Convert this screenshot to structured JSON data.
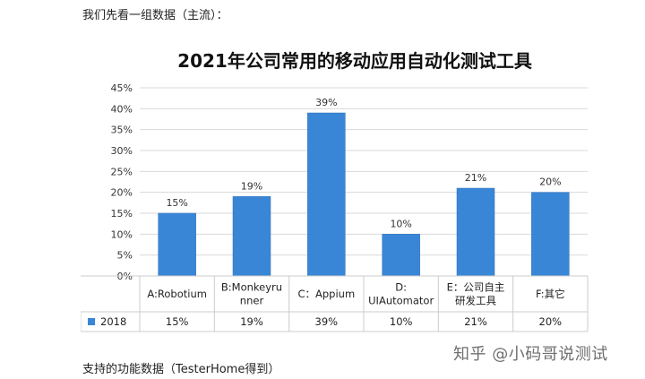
{
  "intro_text": "我们先看一组数据（主流）：",
  "footer_text": "支持的功能数据（TesterHome得到）",
  "watermark": "知乎 @小码哥说测试",
  "colors": {
    "bar": "#3A86D6",
    "bar_edge": "#2F72BE",
    "grid": "#d9d9d9",
    "table_line": "#cccccc"
  },
  "chart_data": {
    "type": "bar",
    "title": "2021年公司常用的移动应用自动化测试工具",
    "categories": [
      "A:Robotium",
      "B:Monkeyrunner",
      "C：Appium",
      "D:UIAutomator",
      "E：公司自主研发工具",
      "F:其它"
    ],
    "category_lines": [
      [
        "A:Robotium"
      ],
      [
        "B:Monkeyru",
        "nner"
      ],
      [
        "C：Appium"
      ],
      [
        "D:",
        "UIAutomator"
      ],
      [
        "E：公司自主",
        "研发工具"
      ],
      [
        "F:其它"
      ]
    ],
    "series": [
      {
        "name": "2018",
        "values": [
          15,
          19,
          39,
          10,
          21,
          20
        ]
      }
    ],
    "value_labels": [
      "15%",
      "19%",
      "39%",
      "10%",
      "21%",
      "20%"
    ],
    "y_ticks": [
      "0%",
      "5%",
      "10%",
      "15%",
      "20%",
      "25%",
      "30%",
      "35%",
      "40%",
      "45%"
    ],
    "ylim": [
      0,
      45
    ],
    "grid": true,
    "legend": "data-table",
    "data_table": true
  }
}
